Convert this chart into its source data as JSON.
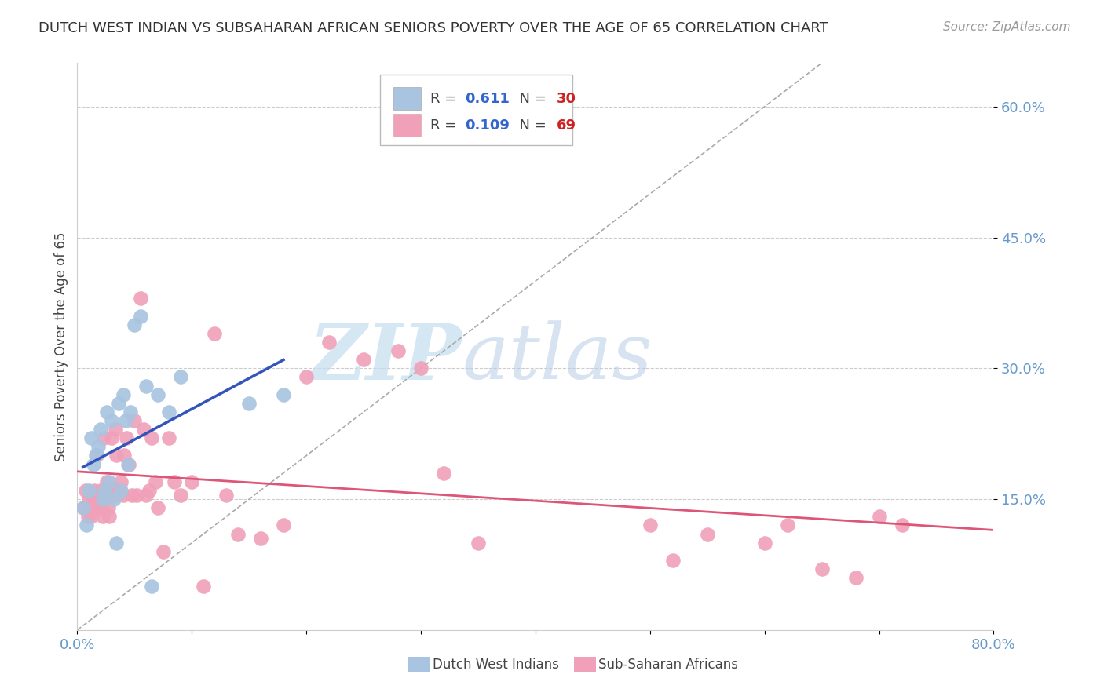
{
  "title": "DUTCH WEST INDIAN VS SUBSAHARAN AFRICAN SENIORS POVERTY OVER THE AGE OF 65 CORRELATION CHART",
  "source": "Source: ZipAtlas.com",
  "ylabel": "Seniors Poverty Over the Age of 65",
  "xlim": [
    0.0,
    0.8
  ],
  "ylim": [
    0.0,
    0.65
  ],
  "yticks": [
    0.15,
    0.3,
    0.45,
    0.6
  ],
  "ytick_labels": [
    "15.0%",
    "30.0%",
    "45.0%",
    "60.0%"
  ],
  "xticks": [
    0.0,
    0.1,
    0.2,
    0.3,
    0.4,
    0.5,
    0.6,
    0.7,
    0.8
  ],
  "xtick_labels": [
    "0.0%",
    "",
    "",
    "",
    "",
    "",
    "",
    "",
    "80.0%"
  ],
  "blue_R": 0.611,
  "blue_N": 30,
  "pink_R": 0.109,
  "pink_N": 69,
  "blue_color": "#a8c4e0",
  "pink_color": "#f0a0b8",
  "blue_line_color": "#3355bb",
  "pink_line_color": "#dd5577",
  "tick_color": "#6699cc",
  "watermark": "ZIPatlas",
  "blue_x": [
    0.005,
    0.008,
    0.01,
    0.012,
    0.014,
    0.016,
    0.018,
    0.02,
    0.022,
    0.024,
    0.026,
    0.028,
    0.03,
    0.032,
    0.034,
    0.036,
    0.038,
    0.04,
    0.042,
    0.044,
    0.046,
    0.05,
    0.055,
    0.06,
    0.065,
    0.07,
    0.08,
    0.09,
    0.15,
    0.18
  ],
  "blue_y": [
    0.14,
    0.12,
    0.16,
    0.22,
    0.19,
    0.2,
    0.21,
    0.23,
    0.15,
    0.16,
    0.25,
    0.17,
    0.24,
    0.15,
    0.1,
    0.26,
    0.16,
    0.27,
    0.24,
    0.19,
    0.25,
    0.35,
    0.36,
    0.28,
    0.05,
    0.27,
    0.25,
    0.29,
    0.26,
    0.27
  ],
  "pink_x": [
    0.005,
    0.007,
    0.009,
    0.01,
    0.011,
    0.012,
    0.013,
    0.014,
    0.015,
    0.016,
    0.017,
    0.018,
    0.02,
    0.021,
    0.022,
    0.023,
    0.025,
    0.026,
    0.027,
    0.028,
    0.03,
    0.031,
    0.032,
    0.033,
    0.034,
    0.035,
    0.036,
    0.038,
    0.04,
    0.041,
    0.043,
    0.045,
    0.048,
    0.05,
    0.052,
    0.055,
    0.058,
    0.06,
    0.063,
    0.065,
    0.068,
    0.07,
    0.075,
    0.08,
    0.085,
    0.09,
    0.1,
    0.11,
    0.12,
    0.13,
    0.14,
    0.16,
    0.18,
    0.2,
    0.22,
    0.25,
    0.28,
    0.3,
    0.32,
    0.35,
    0.5,
    0.52,
    0.55,
    0.6,
    0.62,
    0.65,
    0.68,
    0.7,
    0.72
  ],
  "pink_y": [
    0.14,
    0.16,
    0.13,
    0.15,
    0.14,
    0.13,
    0.155,
    0.145,
    0.16,
    0.14,
    0.2,
    0.15,
    0.16,
    0.14,
    0.13,
    0.22,
    0.155,
    0.17,
    0.14,
    0.13,
    0.22,
    0.155,
    0.16,
    0.23,
    0.2,
    0.155,
    0.16,
    0.17,
    0.155,
    0.2,
    0.22,
    0.19,
    0.155,
    0.24,
    0.155,
    0.38,
    0.23,
    0.155,
    0.16,
    0.22,
    0.17,
    0.14,
    0.09,
    0.22,
    0.17,
    0.155,
    0.17,
    0.05,
    0.34,
    0.155,
    0.11,
    0.105,
    0.12,
    0.29,
    0.33,
    0.31,
    0.32,
    0.3,
    0.18,
    0.1,
    0.12,
    0.08,
    0.11,
    0.1,
    0.12,
    0.07,
    0.06,
    0.13,
    0.12
  ]
}
